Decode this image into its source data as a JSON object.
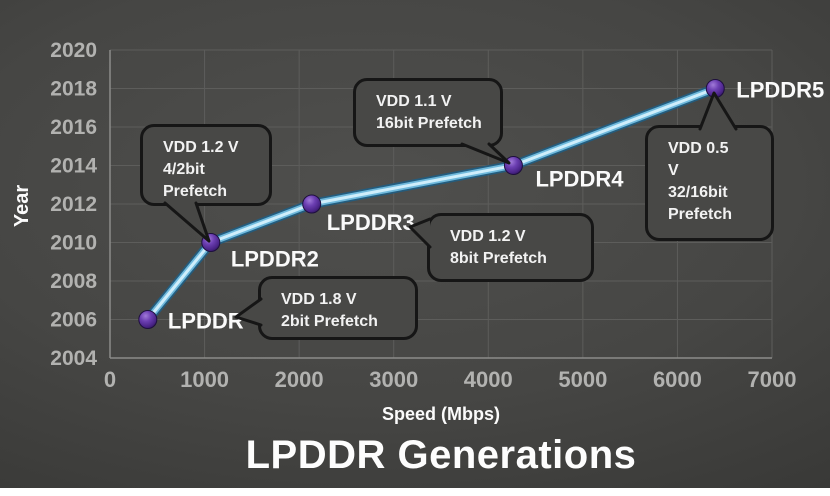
{
  "title": "LPDDR Generations",
  "colors": {
    "background": "#3f3f3d",
    "grid": "#5d5d5b",
    "axis": "#8c8c8a",
    "tick_text": "#b2b2b0",
    "text": "#ffffff",
    "callout_fill": "#484846",
    "callout_border": "#161616"
  },
  "chart_data": {
    "type": "line",
    "title": "LPDDR Generations",
    "xlabel": "Speed (Mbps)",
    "ylabel": "Year",
    "xlim": [
      0,
      7000
    ],
    "ylim": [
      2004,
      2020
    ],
    "x_ticks": [
      0,
      1000,
      2000,
      3000,
      4000,
      5000,
      6000,
      7000
    ],
    "y_ticks": [
      2004,
      2006,
      2008,
      2010,
      2012,
      2014,
      2016,
      2018,
      2020
    ],
    "grid": true,
    "legend": "none",
    "series": [
      {
        "name": "LPDDR generations",
        "line_color_core": "#cfeefb",
        "line_color_mid": "#6fb9dc",
        "line_color_edge": "#245c7d",
        "marker_color": "#5c2f9e",
        "points": [
          {
            "label": "LPDDR",
            "speed_mbps": 400,
            "year": 2006
          },
          {
            "label": "LPDDR2",
            "speed_mbps": 1066,
            "year": 2010
          },
          {
            "label": "LPDDR3",
            "speed_mbps": 2133,
            "year": 2012
          },
          {
            "label": "LPDDR4",
            "speed_mbps": 4266,
            "year": 2014
          },
          {
            "label": "LPDDR5",
            "speed_mbps": 6400,
            "year": 2018
          }
        ]
      }
    ],
    "callouts": [
      {
        "target": "LPDDR",
        "lines": [
          "VDD 1.8 V",
          "2bit Prefetch"
        ]
      },
      {
        "target": "LPDDR2",
        "lines": [
          "VDD 1.2 V",
          "4/2bit",
          "Prefetch"
        ]
      },
      {
        "target": "LPDDR3",
        "lines": [
          "VDD 1.2 V",
          "8bit Prefetch"
        ]
      },
      {
        "target": "LPDDR4",
        "lines": [
          "VDD 1.1 V",
          "16bit Prefetch"
        ]
      },
      {
        "target": "LPDDR5",
        "lines": [
          "VDD 0.5",
          "V",
          "32/16bit",
          "Prefetch"
        ]
      }
    ]
  }
}
